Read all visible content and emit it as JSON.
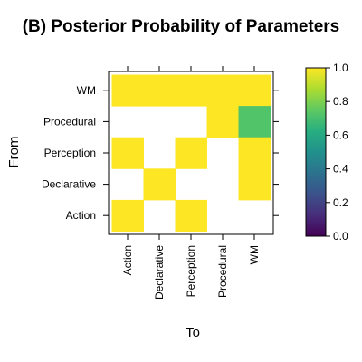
{
  "chart_data": {
    "type": "heatmap",
    "title": "(B) Posterior Probability of Parameters",
    "xlabel": "To",
    "ylabel": "From",
    "x_categories": [
      "Action",
      "Declarative",
      "Perception",
      "Procedural",
      "WM"
    ],
    "y_categories": [
      "Action",
      "Declarative",
      "Perception",
      "Procedural",
      "WM"
    ],
    "cells": [
      {
        "from": "WM",
        "to": "Action",
        "value": 1.0
      },
      {
        "from": "WM",
        "to": "Declarative",
        "value": 1.0
      },
      {
        "from": "WM",
        "to": "Perception",
        "value": 1.0
      },
      {
        "from": "WM",
        "to": "Procedural",
        "value": 1.0
      },
      {
        "from": "WM",
        "to": "WM",
        "value": 1.0
      },
      {
        "from": "Procedural",
        "to": "Procedural",
        "value": 1.0
      },
      {
        "from": "Procedural",
        "to": "WM",
        "value": 0.72
      },
      {
        "from": "Perception",
        "to": "Action",
        "value": 1.0
      },
      {
        "from": "Perception",
        "to": "Perception",
        "value": 1.0
      },
      {
        "from": "Perception",
        "to": "WM",
        "value": 1.0
      },
      {
        "from": "Declarative",
        "to": "Declarative",
        "value": 1.0
      },
      {
        "from": "Declarative",
        "to": "WM",
        "value": 1.0
      },
      {
        "from": "Action",
        "to": "Action",
        "value": 1.0
      },
      {
        "from": "Action",
        "to": "Perception",
        "value": 1.0
      }
    ],
    "colorbar": {
      "colormap": "viridis",
      "range": [
        0.0,
        1.0
      ],
      "ticks": [
        "0.0",
        "0.2",
        "0.4",
        "0.6",
        "0.8",
        "1.0"
      ]
    },
    "grid": false
  }
}
